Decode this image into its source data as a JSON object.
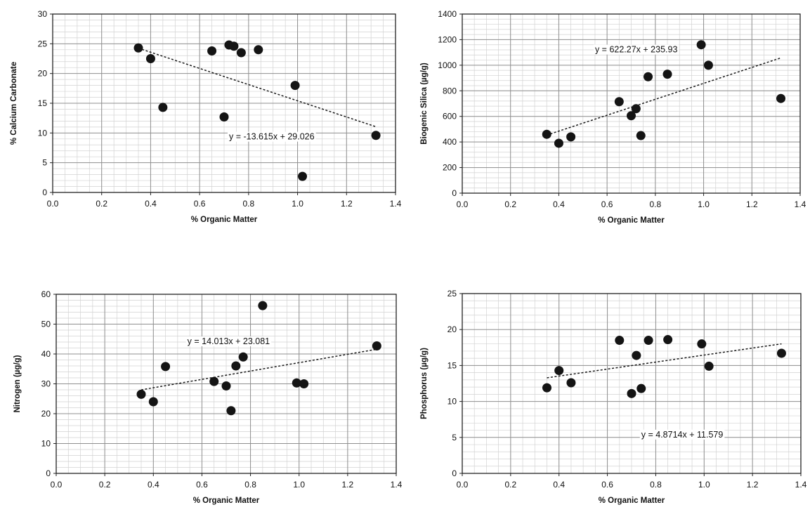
{
  "chart_data": [
    {
      "type": "scatter",
      "xlabel": "% Organic Matter",
      "ylabel": "% Calcium Carbonate",
      "xlim": [
        0,
        1.4
      ],
      "ylim": [
        0,
        30
      ],
      "xticks": [
        "0.0",
        "0.2",
        "0.4",
        "0.6",
        "0.8",
        "1.0",
        "1.2",
        "1.4"
      ],
      "yticks": [
        "0",
        "5",
        "10",
        "15",
        "20",
        "25",
        "30"
      ],
      "grid": true,
      "points": [
        {
          "x": 0.35,
          "y": 24.3
        },
        {
          "x": 0.4,
          "y": 22.5
        },
        {
          "x": 0.45,
          "y": 14.3
        },
        {
          "x": 0.65,
          "y": 23.8
        },
        {
          "x": 0.7,
          "y": 12.7
        },
        {
          "x": 0.72,
          "y": 24.8
        },
        {
          "x": 0.74,
          "y": 24.6
        },
        {
          "x": 0.77,
          "y": 23.5
        },
        {
          "x": 0.84,
          "y": 24.0
        },
        {
          "x": 0.99,
          "y": 18.0
        },
        {
          "x": 1.02,
          "y": 2.7
        },
        {
          "x": 1.32,
          "y": 9.6
        }
      ],
      "trendline": {
        "slope": -13.615,
        "intercept": 29.026,
        "x_range": [
          0.35,
          1.32
        ]
      },
      "equation": "y = -13.615x + 29.026",
      "equation_at": {
        "x": 0.72,
        "y": 8.9
      }
    },
    {
      "type": "scatter",
      "xlabel": "% Organic Matter",
      "ylabel": "Biogenic Silica (µg/g)",
      "xlim": [
        0,
        1.4
      ],
      "ylim": [
        0,
        1400
      ],
      "xticks": [
        "0.0",
        "0.2",
        "0.4",
        "0.6",
        "0.8",
        "1.0",
        "1.2",
        "1.4"
      ],
      "yticks": [
        "0",
        "200",
        "400",
        "600",
        "800",
        "1000",
        "1200",
        "1400"
      ],
      "grid": true,
      "points": [
        {
          "x": 0.35,
          "y": 460
        },
        {
          "x": 0.4,
          "y": 390
        },
        {
          "x": 0.45,
          "y": 440
        },
        {
          "x": 0.65,
          "y": 715
        },
        {
          "x": 0.7,
          "y": 605
        },
        {
          "x": 0.72,
          "y": 660
        },
        {
          "x": 0.74,
          "y": 450
        },
        {
          "x": 0.77,
          "y": 910
        },
        {
          "x": 0.85,
          "y": 930
        },
        {
          "x": 0.99,
          "y": 1160
        },
        {
          "x": 1.02,
          "y": 1000
        },
        {
          "x": 1.32,
          "y": 740
        }
      ],
      "trendline": {
        "slope": 622.27,
        "intercept": 235.93,
        "x_range": [
          0.35,
          1.32
        ]
      },
      "equation": "y = 622.27x + 235.93",
      "equation_at": {
        "x": 0.55,
        "y": 1100
      }
    },
    {
      "type": "scatter",
      "xlabel": "% Organic Matter",
      "ylabel": "Nitrogen (µg/g)",
      "xlim": [
        0,
        1.4
      ],
      "ylim": [
        0,
        60
      ],
      "xticks": [
        "0.0",
        "0.2",
        "0.4",
        "0.6",
        "0.8",
        "1.0",
        "1.2",
        "1.4"
      ],
      "yticks": [
        "0",
        "10",
        "20",
        "30",
        "40",
        "50",
        "60"
      ],
      "grid": true,
      "points": [
        {
          "x": 0.35,
          "y": 26.5
        },
        {
          "x": 0.4,
          "y": 24.0
        },
        {
          "x": 0.45,
          "y": 35.8
        },
        {
          "x": 0.65,
          "y": 30.8
        },
        {
          "x": 0.7,
          "y": 29.3
        },
        {
          "x": 0.72,
          "y": 21.0
        },
        {
          "x": 0.74,
          "y": 36.0
        },
        {
          "x": 0.77,
          "y": 39.0
        },
        {
          "x": 0.85,
          "y": 56.2
        },
        {
          "x": 0.99,
          "y": 30.3
        },
        {
          "x": 1.02,
          "y": 30.0
        },
        {
          "x": 1.32,
          "y": 42.7
        }
      ],
      "trendline": {
        "slope": 14.013,
        "intercept": 23.081,
        "x_range": [
          0.35,
          1.32
        ]
      },
      "equation": "y = 14.013x + 23.081",
      "equation_at": {
        "x": 0.54,
        "y": 43.3
      }
    },
    {
      "type": "scatter",
      "xlabel": "% Organic Matter",
      "ylabel": "Phosphorus (µg/g)",
      "xlim": [
        0,
        1.4
      ],
      "ylim": [
        0,
        25
      ],
      "xticks": [
        "0.0",
        "0.2",
        "0.4",
        "0.6",
        "0.8",
        "1.0",
        "1.2",
        "1.4"
      ],
      "yticks": [
        "0",
        "5",
        "10",
        "15",
        "20",
        "25"
      ],
      "grid": true,
      "points": [
        {
          "x": 0.35,
          "y": 11.9
        },
        {
          "x": 0.4,
          "y": 14.3
        },
        {
          "x": 0.45,
          "y": 12.6
        },
        {
          "x": 0.65,
          "y": 18.5
        },
        {
          "x": 0.7,
          "y": 11.1
        },
        {
          "x": 0.72,
          "y": 16.4
        },
        {
          "x": 0.74,
          "y": 11.8
        },
        {
          "x": 0.77,
          "y": 18.5
        },
        {
          "x": 0.85,
          "y": 18.6
        },
        {
          "x": 0.99,
          "y": 18.0
        },
        {
          "x": 1.02,
          "y": 14.9
        },
        {
          "x": 1.32,
          "y": 16.7
        }
      ],
      "trendline": {
        "slope": 4.8714,
        "intercept": 11.579,
        "x_range": [
          0.35,
          1.32
        ]
      },
      "equation": "y = 4.8714x + 11.579",
      "equation_at": {
        "x": 0.74,
        "y": 5.0
      }
    }
  ],
  "colors": {
    "marker": "#141414",
    "trendline": "#1a1a1a",
    "grid_major": "#8f8f8f",
    "grid_minor": "#d2d2d2",
    "background": "#ffffff"
  }
}
